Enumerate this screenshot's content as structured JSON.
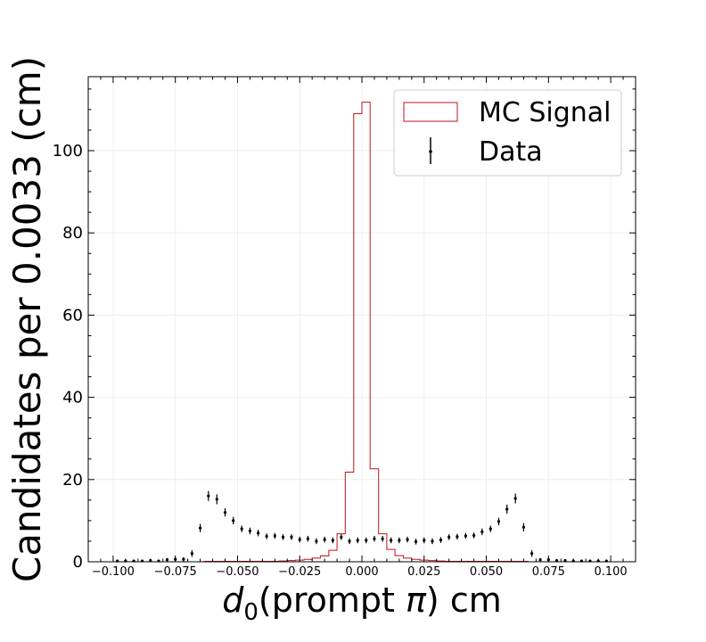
{
  "chart_data": {
    "type": "histogram",
    "title": "",
    "ylabel": "Candidates per 0.0033 (cm)",
    "xlabel_parts": {
      "main": "d",
      "sub": "0",
      "paren": "(prompt ",
      "greek": "π",
      "close": ")",
      "unit": " cm"
    },
    "xlim": [
      -0.11,
      0.11
    ],
    "ylim": [
      0,
      118
    ],
    "xticks": [
      -0.1,
      -0.075,
      -0.05,
      -0.025,
      0.0,
      0.025,
      0.05,
      0.075,
      0.1
    ],
    "xtick_labels": [
      "−0.100",
      "−0.075",
      "−0.050",
      "−0.025",
      "0.000",
      "0.025",
      "0.050",
      "0.075",
      "0.100"
    ],
    "yticks": [
      0,
      20,
      40,
      60,
      80,
      100
    ],
    "ytick_labels": [
      "0",
      "20",
      "40",
      "60",
      "80",
      "100"
    ],
    "grid": true,
    "legend": {
      "placement": "top-right",
      "entries": [
        {
          "label": "MC Signal",
          "kind": "histogram",
          "color": "#c0141c"
        },
        {
          "label": "Data",
          "kind": "errorbar",
          "color": "#000000"
        }
      ]
    },
    "mc_signal": {
      "color": "#c0141c",
      "bin_edges": [
        -0.1,
        -0.0967,
        -0.0933,
        -0.09,
        -0.0867,
        -0.0833,
        -0.08,
        -0.0767,
        -0.0733,
        -0.07,
        -0.0667,
        -0.0633,
        -0.06,
        -0.0567,
        -0.0533,
        -0.05,
        -0.0467,
        -0.0433,
        -0.04,
        -0.0367,
        -0.0333,
        -0.03,
        -0.0267,
        -0.0233,
        -0.02,
        -0.0167,
        -0.0133,
        -0.01,
        -0.0067,
        -0.0033,
        0.0,
        0.0033,
        0.0067,
        0.01,
        0.0133,
        0.0167,
        0.02,
        0.0233,
        0.0267,
        0.03,
        0.0333,
        0.0367,
        0.04,
        0.0433,
        0.0467,
        0.05,
        0.0533,
        0.0567,
        0.06,
        0.0633,
        0.0667,
        0.07,
        0.0733,
        0.0767,
        0.08,
        0.0833,
        0.0867,
        0.09,
        0.0933,
        0.0967,
        0.1
      ],
      "values": [
        0,
        0,
        0,
        0,
        0,
        0,
        0,
        0,
        0,
        0,
        0,
        0.1,
        0.1,
        0.1,
        0.1,
        0.1,
        0.1,
        0.1,
        0.1,
        0.1,
        0.2,
        0.3,
        0.4,
        0.6,
        0.9,
        1.4,
        2.8,
        6.8,
        21.8,
        109,
        111.8,
        22.6,
        6.8,
        3.0,
        1.5,
        0.9,
        0.6,
        0.4,
        0.3,
        0.2,
        0.1,
        0.1,
        0.1,
        0.1,
        0.1,
        0.1,
        0.1,
        0.1,
        0.1,
        0.1,
        0,
        0,
        0,
        0,
        0,
        0,
        0,
        0,
        0,
        0
      ]
    },
    "data": {
      "color": "#000000",
      "x": [
        -0.0983,
        -0.095,
        -0.0917,
        -0.0883,
        -0.085,
        -0.0817,
        -0.0783,
        -0.075,
        -0.0717,
        -0.0683,
        -0.065,
        -0.0617,
        -0.0583,
        -0.055,
        -0.0517,
        -0.0483,
        -0.045,
        -0.0417,
        -0.0383,
        -0.035,
        -0.0317,
        -0.0283,
        -0.025,
        -0.0217,
        -0.0183,
        -0.015,
        -0.0117,
        -0.0083,
        -0.005,
        -0.0017,
        0.0017,
        0.005,
        0.0083,
        0.0117,
        0.015,
        0.0183,
        0.0217,
        0.025,
        0.0283,
        0.0317,
        0.035,
        0.0383,
        0.0417,
        0.045,
        0.0483,
        0.0517,
        0.055,
        0.0583,
        0.0617,
        0.065,
        0.0683,
        0.0717,
        0.075,
        0.0783,
        0.0817,
        0.085,
        0.0883,
        0.0917,
        0.095,
        0.0983
      ],
      "y": [
        0.2,
        0.2,
        0.2,
        0.2,
        0.3,
        0.2,
        0.5,
        0.6,
        0.6,
        2.0,
        8.2,
        16.0,
        15.2,
        12.0,
        10.0,
        8.0,
        7.5,
        7.0,
        6.2,
        6.3,
        6.0,
        6.0,
        5.4,
        5.6,
        5.0,
        5.4,
        5.2,
        6.0,
        5.0,
        5.2,
        5.2,
        5.6,
        5.6,
        5.2,
        5.2,
        5.4,
        4.9,
        5.2,
        5.0,
        5.3,
        6.0,
        6.1,
        6.3,
        6.4,
        7.3,
        8.0,
        9.8,
        12.8,
        15.4,
        8.4,
        2.0,
        0.5,
        0.5,
        0.3,
        0.3,
        0.2,
        0.2,
        0.2,
        0.2,
        0.2
      ],
      "err": [
        0.3,
        0.3,
        0.3,
        0.3,
        0.3,
        0.3,
        0.4,
        0.5,
        0.5,
        0.8,
        1.0,
        1.2,
        1.2,
        1.0,
        0.9,
        0.8,
        0.8,
        0.8,
        0.7,
        0.7,
        0.7,
        0.7,
        0.7,
        0.7,
        0.7,
        0.7,
        0.7,
        0.7,
        0.7,
        0.7,
        0.7,
        0.7,
        0.7,
        0.7,
        0.7,
        0.7,
        0.7,
        0.7,
        0.7,
        0.7,
        0.7,
        0.7,
        0.7,
        0.7,
        0.8,
        0.8,
        0.9,
        1.1,
        1.2,
        1.0,
        0.8,
        0.4,
        0.4,
        0.3,
        0.3,
        0.3,
        0.3,
        0.3,
        0.3,
        0.3
      ]
    }
  }
}
